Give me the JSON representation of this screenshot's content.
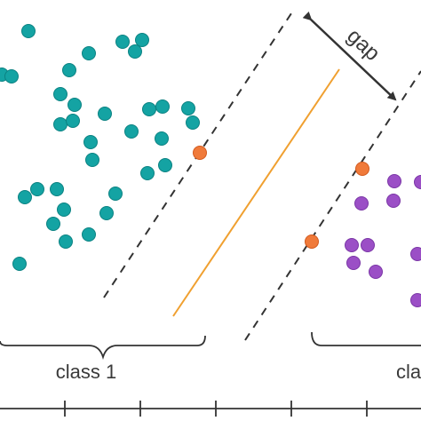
{
  "labels": {
    "gap": "gap",
    "class1": "class 1",
    "class2_partial": "cla"
  },
  "colors": {
    "class1_points": "#14a3a3",
    "class2_points": "#9b4fc6",
    "support_vectors": "#f07a3a",
    "decision_boundary": "#f0a030",
    "margin_lines": "#333333",
    "axis": "#333333",
    "text": "#3a3a3a"
  }
}
